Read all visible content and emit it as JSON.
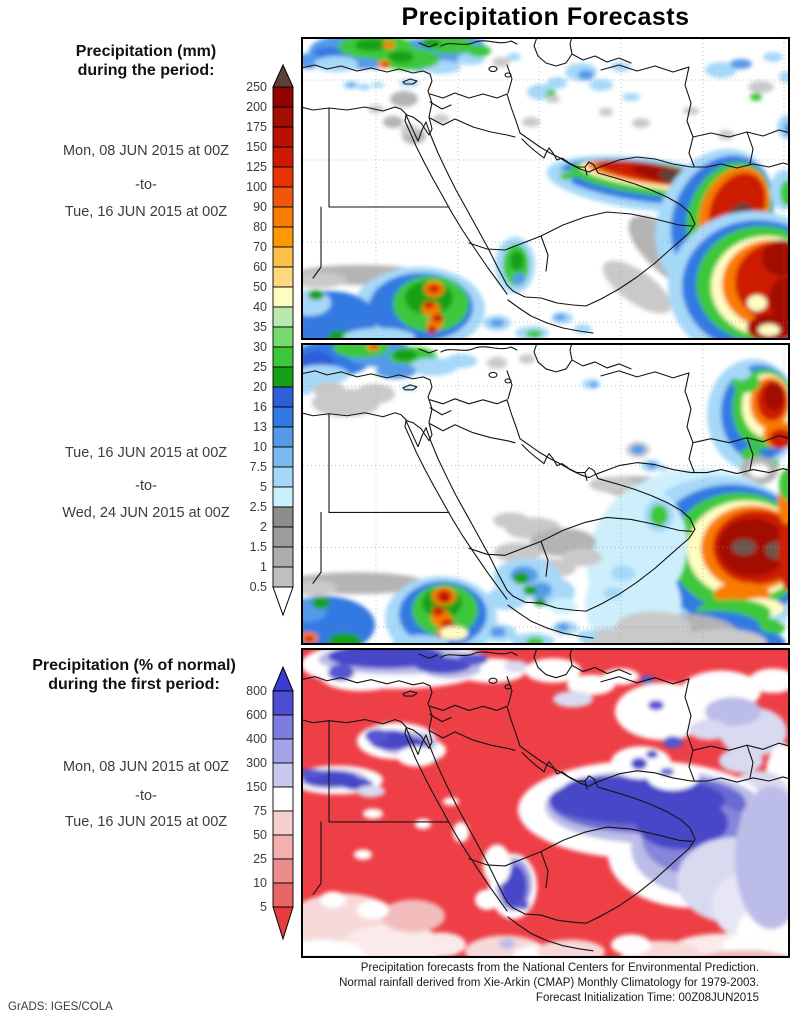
{
  "title": "Precipitation Forecasts",
  "credit": "GrADS: IGES/COLA",
  "panel1": {
    "heading1": "Precipitation (mm)",
    "heading2": "during the period:",
    "from": "Mon, 08 JUN 2015 at 00Z",
    "sep": "-to-",
    "to": "Tue, 16 JUN 2015 at 00Z"
  },
  "panel2": {
    "from": "Tue, 16 JUN 2015 at 00Z",
    "sep": "-to-",
    "to": "Wed, 24 JUN 2015 at 00Z"
  },
  "panel3": {
    "heading1": "Precipitation (% of normal)",
    "heading2": "during the first period:",
    "from": "Mon, 08 JUN 2015 at 00Z",
    "sep": "-to-",
    "to": "Tue, 16 JUN 2015 at 00Z"
  },
  "colorbar_mm": {
    "unit": "mm",
    "ticks": [
      "250",
      "200",
      "175",
      "150",
      "125",
      "100",
      "90",
      "80",
      "70",
      "60",
      "50",
      "40",
      "35",
      "30",
      "25",
      "20",
      "16",
      "13",
      "10",
      "7.5",
      "5",
      "2.5",
      "2",
      "1.5",
      "1",
      "0.5"
    ],
    "colors": [
      "#5e4038",
      "#920200",
      "#a30d02",
      "#b81003",
      "#cd1a03",
      "#e93306",
      "#f1570a",
      "#f97c02",
      "#fb9804",
      "#fcc04a",
      "#fdd87f",
      "#fefdc1",
      "#b9e9af",
      "#77da6e",
      "#3cc83a",
      "#16a018",
      "#2d5fd9",
      "#3379e2",
      "#549ae9",
      "#7ab8f0",
      "#a5d7f7",
      "#cbeffb",
      "#8c8c8c",
      "#9c9c9c",
      "#adadad",
      "#bfbfbf",
      "#ffffff"
    ]
  },
  "colorbar_pct": {
    "unit": "% of normal",
    "ticks": [
      "800",
      "600",
      "400",
      "300",
      "150",
      "75",
      "50",
      "25",
      "10",
      "5"
    ],
    "colors": [
      "#3b3bd1",
      "#4c4cd4",
      "#7d7de0",
      "#a3a3e8",
      "#c9c9f0",
      "#ffffff",
      "#f6cfcf",
      "#f2b0b0",
      "#ec8c8c",
      "#e76666",
      "#e83c3c"
    ]
  },
  "footer": {
    "line1": "Precipitation forecasts from the National Centers for Environmental Prediction.",
    "line2": "Normal rainfall derived from Xie-Arkin (CMAP) Monthly Climatology for 1979-2003.",
    "line3": "Forecast Initialization Time: 00Z08JUN2015"
  }
}
